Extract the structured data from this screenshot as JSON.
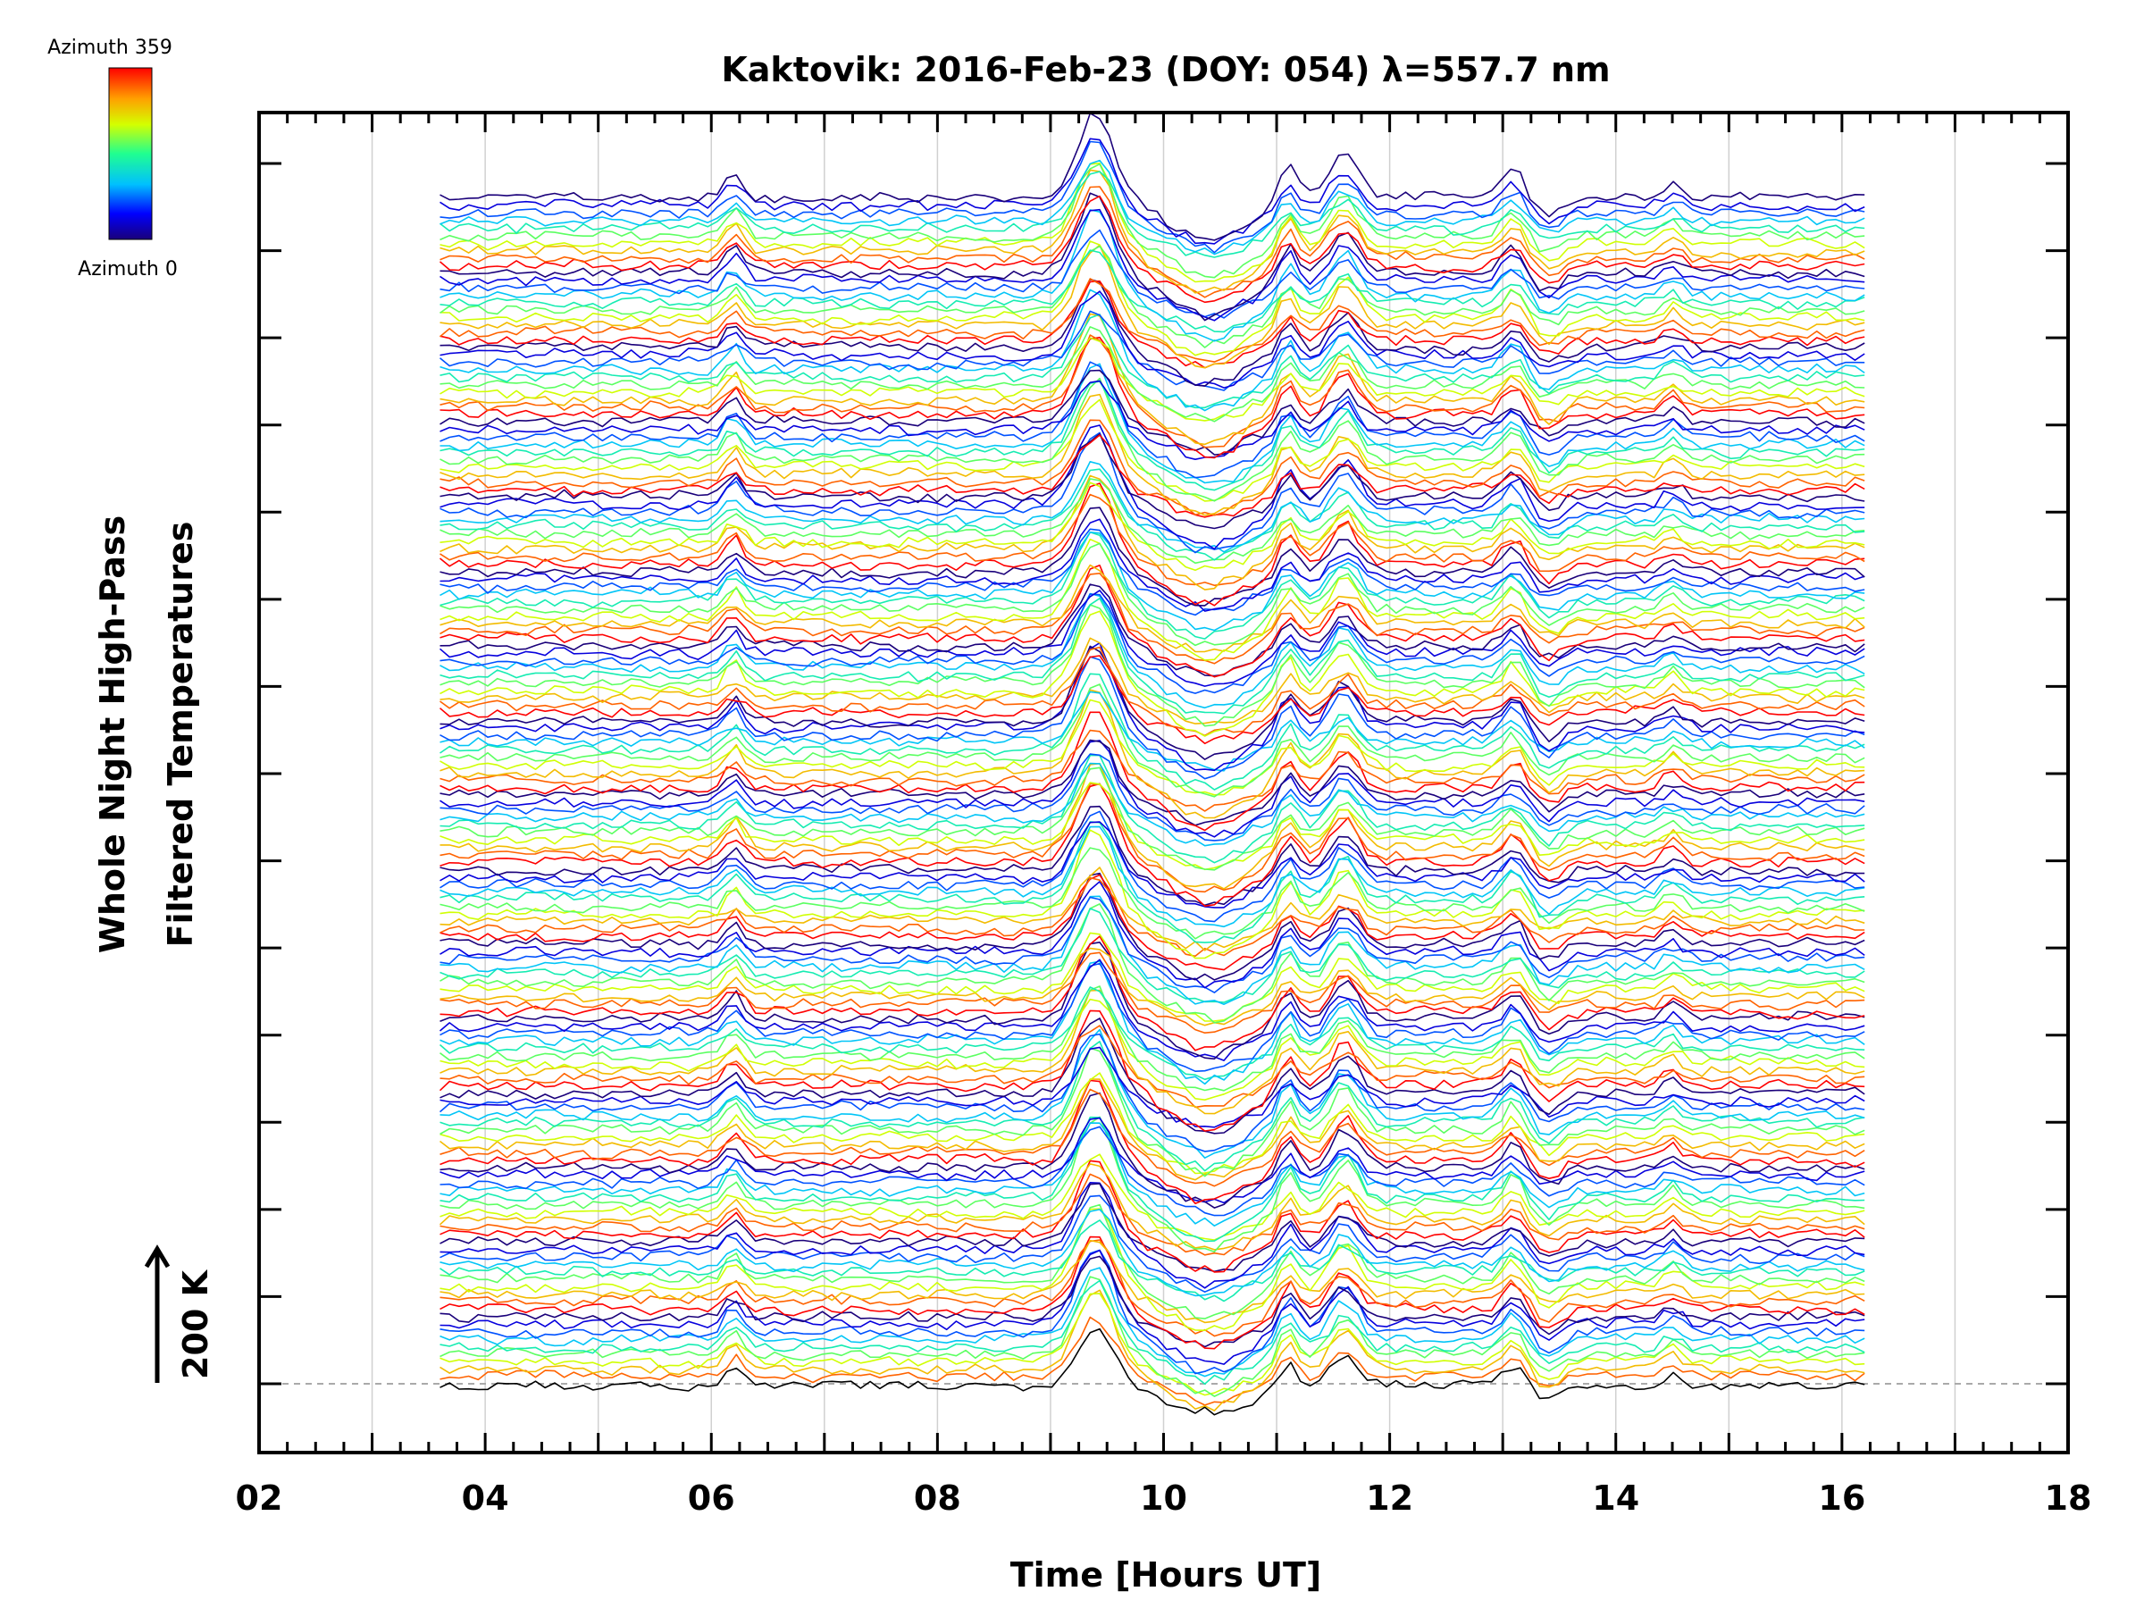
{
  "chart_data": {
    "type": "line",
    "title": "Kaktovik: 2016-Feb-23 (DOY: 054) λ=557.7 nm",
    "xlabel": "Time [Hours UT]",
    "ylabel_line1": "Whole Night High-Pass",
    "ylabel_line2": "Filtered Temperatures",
    "xlim": [
      2,
      18
    ],
    "x_ticks": [
      "02",
      "04",
      "06",
      "08",
      "10",
      "12",
      "14",
      "16",
      "18"
    ],
    "x_tick_values": [
      2,
      4,
      6,
      8,
      10,
      12,
      14,
      16,
      18
    ],
    "grid_x": [
      3,
      4,
      5,
      6,
      7,
      8,
      9,
      10,
      11,
      12,
      13,
      14,
      15,
      16,
      17
    ],
    "data_time_range": [
      3.6,
      16.2
    ],
    "scale_bar": {
      "label": "200 K",
      "kelvin": 200
    },
    "colorbar": {
      "top_label": "Azimuth 359",
      "bottom_label": "Azimuth 0",
      "colormap": "rainbow",
      "min_azimuth": 0,
      "max_azimuth": 359
    },
    "num_series": 160,
    "trace_groups": 15,
    "events": [
      {
        "time_ut": 6.2,
        "note": "small peak"
      },
      {
        "time_ut": 9.4,
        "note": "major peak"
      },
      {
        "time_ut": 10.4,
        "note": "dip"
      },
      {
        "time_ut": 11.1,
        "note": "peak"
      },
      {
        "time_ut": 11.6,
        "note": "peak"
      },
      {
        "time_ut": 13.1,
        "note": "peak"
      },
      {
        "time_ut": 14.5,
        "note": "small peak"
      }
    ],
    "colors": {
      "axis": "#000000",
      "grid": "#d0d0d0",
      "baseline": "#aaaaaa"
    }
  }
}
